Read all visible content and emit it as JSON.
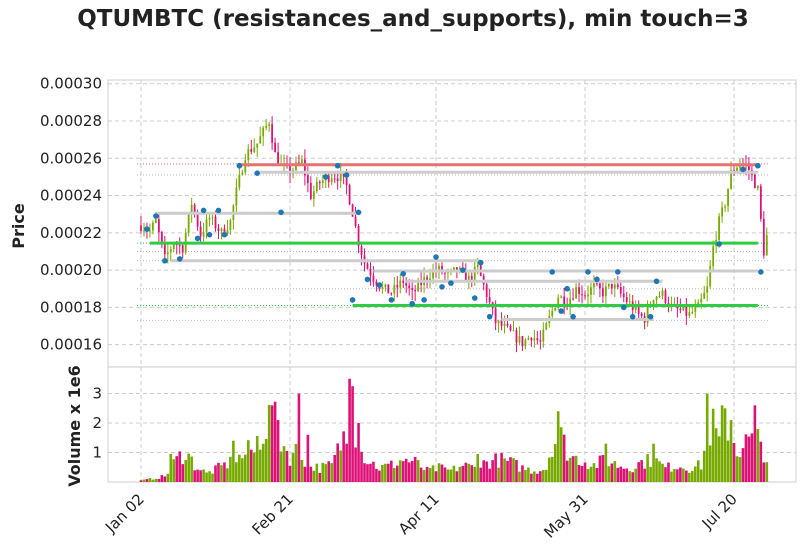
{
  "chart_data": {
    "type": "candlestick",
    "title": "QTUMBTC (resistances_and_supports), min touch=3",
    "price_panel": {
      "ylabel": "Price",
      "ylim": [
        0.000148,
        0.000302
      ],
      "yticks": [
        0.00016,
        0.00018,
        0.0002,
        0.00022,
        0.00024,
        0.00026,
        0.00028,
        0.0003
      ],
      "ytick_labels": [
        "0.00016",
        "0.00018",
        "0.00020",
        "0.00022",
        "0.00024",
        "0.00026",
        "0.00028",
        "0.00030"
      ],
      "grid": true
    },
    "volume_panel": {
      "ylabel": "Volume x 1e6",
      "ylim": [
        0,
        3.9
      ],
      "yticks": [
        1,
        2,
        3
      ],
      "ytick_labels": [
        "1",
        "2",
        "3"
      ],
      "grid": true
    },
    "x_axis": {
      "tick_labels": [
        "Jan 02",
        "Feb 21",
        "Apr 11",
        "May 31",
        "Jul 20"
      ],
      "tick_day_index": [
        0,
        50,
        99,
        149,
        199
      ],
      "num_days": 211
    },
    "resistance_lines": [
      {
        "value": 0.0002565,
        "start_day": 33,
        "end_day": 207,
        "color": "#e57373"
      },
      {
        "value": 0.0002525,
        "start_day": 40,
        "end_day": 207,
        "color": "#cccccc"
      },
      {
        "value": 0.0002305,
        "start_day": 5,
        "end_day": 73,
        "color": "#cccccc"
      }
    ],
    "support_lines": [
      {
        "value": 0.0002145,
        "start_day": 3,
        "end_day": 207,
        "color": "#2ecc40"
      },
      {
        "value": 0.000181,
        "start_day": 71,
        "end_day": 207,
        "color": "#2ecc40"
      },
      {
        "value": 0.000205,
        "start_day": 10,
        "end_day": 114,
        "color": "#cccccc"
      },
      {
        "value": 0.0001995,
        "start_day": 78,
        "end_day": 207,
        "color": "#cccccc"
      },
      {
        "value": 0.000194,
        "start_day": 89,
        "end_day": 175,
        "color": "#cccccc"
      },
      {
        "value": 0.0001735,
        "start_day": 121,
        "end_day": 172,
        "color": "#cccccc"
      }
    ],
    "dotted_levels": [
      {
        "value": 0.000257,
        "color": "#e57373"
      },
      {
        "value": 0.000251,
        "color": "#bbbbbb"
      },
      {
        "value": 0.0002145,
        "color": "#2ecc40"
      },
      {
        "value": 0.00021,
        "color": "#bbbbbb"
      },
      {
        "value": 0.000205,
        "color": "#bbbbbb"
      },
      {
        "value": 0.00019,
        "color": "#bbbbbb"
      },
      {
        "value": 0.000181,
        "color": "#2ecc40"
      },
      {
        "value": 0.000173,
        "color": "#bbbbbb"
      }
    ],
    "touch_points": [
      {
        "day": 2,
        "price": 0.000222
      },
      {
        "day": 5,
        "price": 0.000229
      },
      {
        "day": 8,
        "price": 0.000205
      },
      {
        "day": 13,
        "price": 0.000206
      },
      {
        "day": 19,
        "price": 0.000217
      },
      {
        "day": 21,
        "price": 0.000232
      },
      {
        "day": 23,
        "price": 0.000219
      },
      {
        "day": 26,
        "price": 0.000232
      },
      {
        "day": 28,
        "price": 0.000219
      },
      {
        "day": 33,
        "price": 0.000256
      },
      {
        "day": 39,
        "price": 0.000252
      },
      {
        "day": 47,
        "price": 0.000231
      },
      {
        "day": 62,
        "price": 0.00025
      },
      {
        "day": 66,
        "price": 0.000256
      },
      {
        "day": 69,
        "price": 0.000251
      },
      {
        "day": 71,
        "price": 0.000184
      },
      {
        "day": 73,
        "price": 0.000231
      },
      {
        "day": 76,
        "price": 0.000195
      },
      {
        "day": 80,
        "price": 0.000192
      },
      {
        "day": 84,
        "price": 0.000184
      },
      {
        "day": 88,
        "price": 0.000198
      },
      {
        "day": 91,
        "price": 0.000182
      },
      {
        "day": 95,
        "price": 0.000184
      },
      {
        "day": 99,
        "price": 0.000207
      },
      {
        "day": 101,
        "price": 0.000191
      },
      {
        "day": 104,
        "price": 0.000193
      },
      {
        "day": 108,
        "price": 0.0002
      },
      {
        "day": 112,
        "price": 0.000185
      },
      {
        "day": 114,
        "price": 0.000204
      },
      {
        "day": 117,
        "price": 0.000175
      },
      {
        "day": 138,
        "price": 0.000199
      },
      {
        "day": 141,
        "price": 0.000178
      },
      {
        "day": 143,
        "price": 0.00019
      },
      {
        "day": 145,
        "price": 0.000175
      },
      {
        "day": 150,
        "price": 0.000199
      },
      {
        "day": 153,
        "price": 0.000195
      },
      {
        "day": 160,
        "price": 0.000199
      },
      {
        "day": 162,
        "price": 0.00018
      },
      {
        "day": 165,
        "price": 0.000175
      },
      {
        "day": 171,
        "price": 0.000175
      },
      {
        "day": 173,
        "price": 0.000194
      },
      {
        "day": 194,
        "price": 0.000214
      },
      {
        "day": 202,
        "price": 0.000254
      },
      {
        "day": 207,
        "price": 0.000256
      },
      {
        "day": 208,
        "price": 0.000199
      }
    ],
    "price_anchors": [
      [
        0,
        0.000224
      ],
      [
        3,
        0.000221
      ],
      [
        5,
        0.000226
      ],
      [
        8,
        0.000206
      ],
      [
        11,
        0.000215
      ],
      [
        14,
        0.000212
      ],
      [
        17,
        0.000236
      ],
      [
        20,
        0.000219
      ],
      [
        23,
        0.000228
      ],
      [
        27,
        0.00022
      ],
      [
        30,
        0.000226
      ],
      [
        32,
        0.000242
      ],
      [
        35,
        0.000262
      ],
      [
        39,
        0.000268
      ],
      [
        41,
        0.000274
      ],
      [
        43,
        0.00028
      ],
      [
        45,
        0.000262
      ],
      [
        47,
        0.000256
      ],
      [
        50,
        0.000253
      ],
      [
        54,
        0.000258
      ],
      [
        57,
        0.00024
      ],
      [
        60,
        0.000247
      ],
      [
        64,
        0.000251
      ],
      [
        67,
        0.00025
      ],
      [
        69,
        0.000245
      ],
      [
        71,
        0.000231
      ],
      [
        73,
        0.000215
      ],
      [
        75,
        0.000204
      ],
      [
        78,
        0.000196
      ],
      [
        81,
        0.00019
      ],
      [
        84,
        0.000188
      ],
      [
        88,
        0.000194
      ],
      [
        91,
        0.000187
      ],
      [
        94,
        0.000193
      ],
      [
        97,
        0.000198
      ],
      [
        100,
        0.0002
      ],
      [
        103,
        0.000197
      ],
      [
        106,
        0.0002
      ],
      [
        110,
        0.000195
      ],
      [
        113,
        0.000201
      ],
      [
        116,
        0.000187
      ],
      [
        119,
        0.000172
      ],
      [
        122,
        0.000169
      ],
      [
        125,
        0.000165
      ],
      [
        128,
        0.000161
      ],
      [
        131,
        0.000165
      ],
      [
        134,
        0.000161
      ],
      [
        137,
        0.000174
      ],
      [
        140,
        0.000186
      ],
      [
        143,
        0.000183
      ],
      [
        146,
        0.00019
      ],
      [
        149,
        0.000187
      ],
      [
        152,
        0.000191
      ],
      [
        155,
        0.000188
      ],
      [
        158,
        0.000192
      ],
      [
        161,
        0.000187
      ],
      [
        164,
        0.000182
      ],
      [
        167,
        0.000176
      ],
      [
        169,
        0.000174
      ],
      [
        172,
        0.000186
      ],
      [
        175,
        0.000187
      ],
      [
        178,
        0.00018
      ],
      [
        181,
        0.000178
      ],
      [
        184,
        0.000176
      ],
      [
        187,
        0.00018
      ],
      [
        190,
        0.00019
      ],
      [
        192,
        0.000212
      ],
      [
        194,
        0.000226
      ],
      [
        196,
        0.000236
      ],
      [
        198,
        0.000252
      ],
      [
        201,
        0.000258
      ],
      [
        204,
        0.000254
      ],
      [
        207,
        0.000243
      ],
      [
        209,
        0.00021
      ],
      [
        210,
        0.000218
      ]
    ],
    "volume_anchors": [
      [
        0,
        0.05
      ],
      [
        8,
        0.2
      ],
      [
        12,
        0.8
      ],
      [
        15,
        1.1
      ],
      [
        18,
        0.6
      ],
      [
        22,
        0.3
      ],
      [
        26,
        0.5
      ],
      [
        30,
        0.7
      ],
      [
        34,
        0.9
      ],
      [
        38,
        1.3
      ],
      [
        41,
        1.8
      ],
      [
        44,
        2.4
      ],
      [
        47,
        1.5
      ],
      [
        50,
        0.9
      ],
      [
        53,
        1.2
      ],
      [
        56,
        0.6
      ],
      [
        60,
        0.5
      ],
      [
        64,
        0.6
      ],
      [
        68,
        1.6
      ],
      [
        70,
        2.9
      ],
      [
        73,
        1.2
      ],
      [
        76,
        0.8
      ],
      [
        80,
        0.5
      ],
      [
        84,
        0.6
      ],
      [
        88,
        0.8
      ],
      [
        92,
        0.7
      ],
      [
        96,
        0.4
      ],
      [
        100,
        0.5
      ],
      [
        104,
        0.4
      ],
      [
        108,
        0.6
      ],
      [
        112,
        0.5
      ],
      [
        116,
        0.7
      ],
      [
        120,
        0.8
      ],
      [
        124,
        0.7
      ],
      [
        128,
        0.5
      ],
      [
        132,
        0.4
      ],
      [
        136,
        0.5
      ],
      [
        138,
        1.4
      ],
      [
        141,
        1.6
      ],
      [
        144,
        0.9
      ],
      [
        148,
        0.8
      ],
      [
        152,
        0.6
      ],
      [
        156,
        0.8
      ],
      [
        160,
        0.6
      ],
      [
        164,
        0.5
      ],
      [
        168,
        0.7
      ],
      [
        172,
        0.8
      ],
      [
        176,
        0.5
      ],
      [
        180,
        0.6
      ],
      [
        184,
        0.5
      ],
      [
        188,
        0.6
      ],
      [
        190,
        1.6
      ],
      [
        192,
        2.0
      ],
      [
        194,
        1.4
      ],
      [
        196,
        2.2
      ],
      [
        198,
        1.8
      ],
      [
        200,
        1.1
      ],
      [
        203,
        1.4
      ],
      [
        206,
        1.6
      ],
      [
        208,
        1.4
      ],
      [
        210,
        0.8
      ]
    ],
    "volume_spikes": [
      [
        10,
        0.95
      ],
      [
        31,
        1.4
      ],
      [
        38,
        1.0
      ],
      [
        44,
        2.6
      ],
      [
        46,
        2.1
      ],
      [
        53,
        3.0
      ],
      [
        56,
        1.6
      ],
      [
        69,
        1.3
      ],
      [
        70,
        3.5
      ],
      [
        71,
        3.25
      ],
      [
        73,
        2.0
      ],
      [
        113,
        0.95
      ],
      [
        140,
        2.4
      ],
      [
        156,
        1.3
      ],
      [
        172,
        1.3
      ],
      [
        190,
        3.0
      ],
      [
        195,
        2.6
      ],
      [
        196,
        2.5
      ],
      [
        198,
        2.1
      ],
      [
        206,
        2.6
      ]
    ],
    "colors": {
      "up": "#77aa00",
      "down": "#dd1177",
      "touch_point": "#1f77b4"
    }
  }
}
